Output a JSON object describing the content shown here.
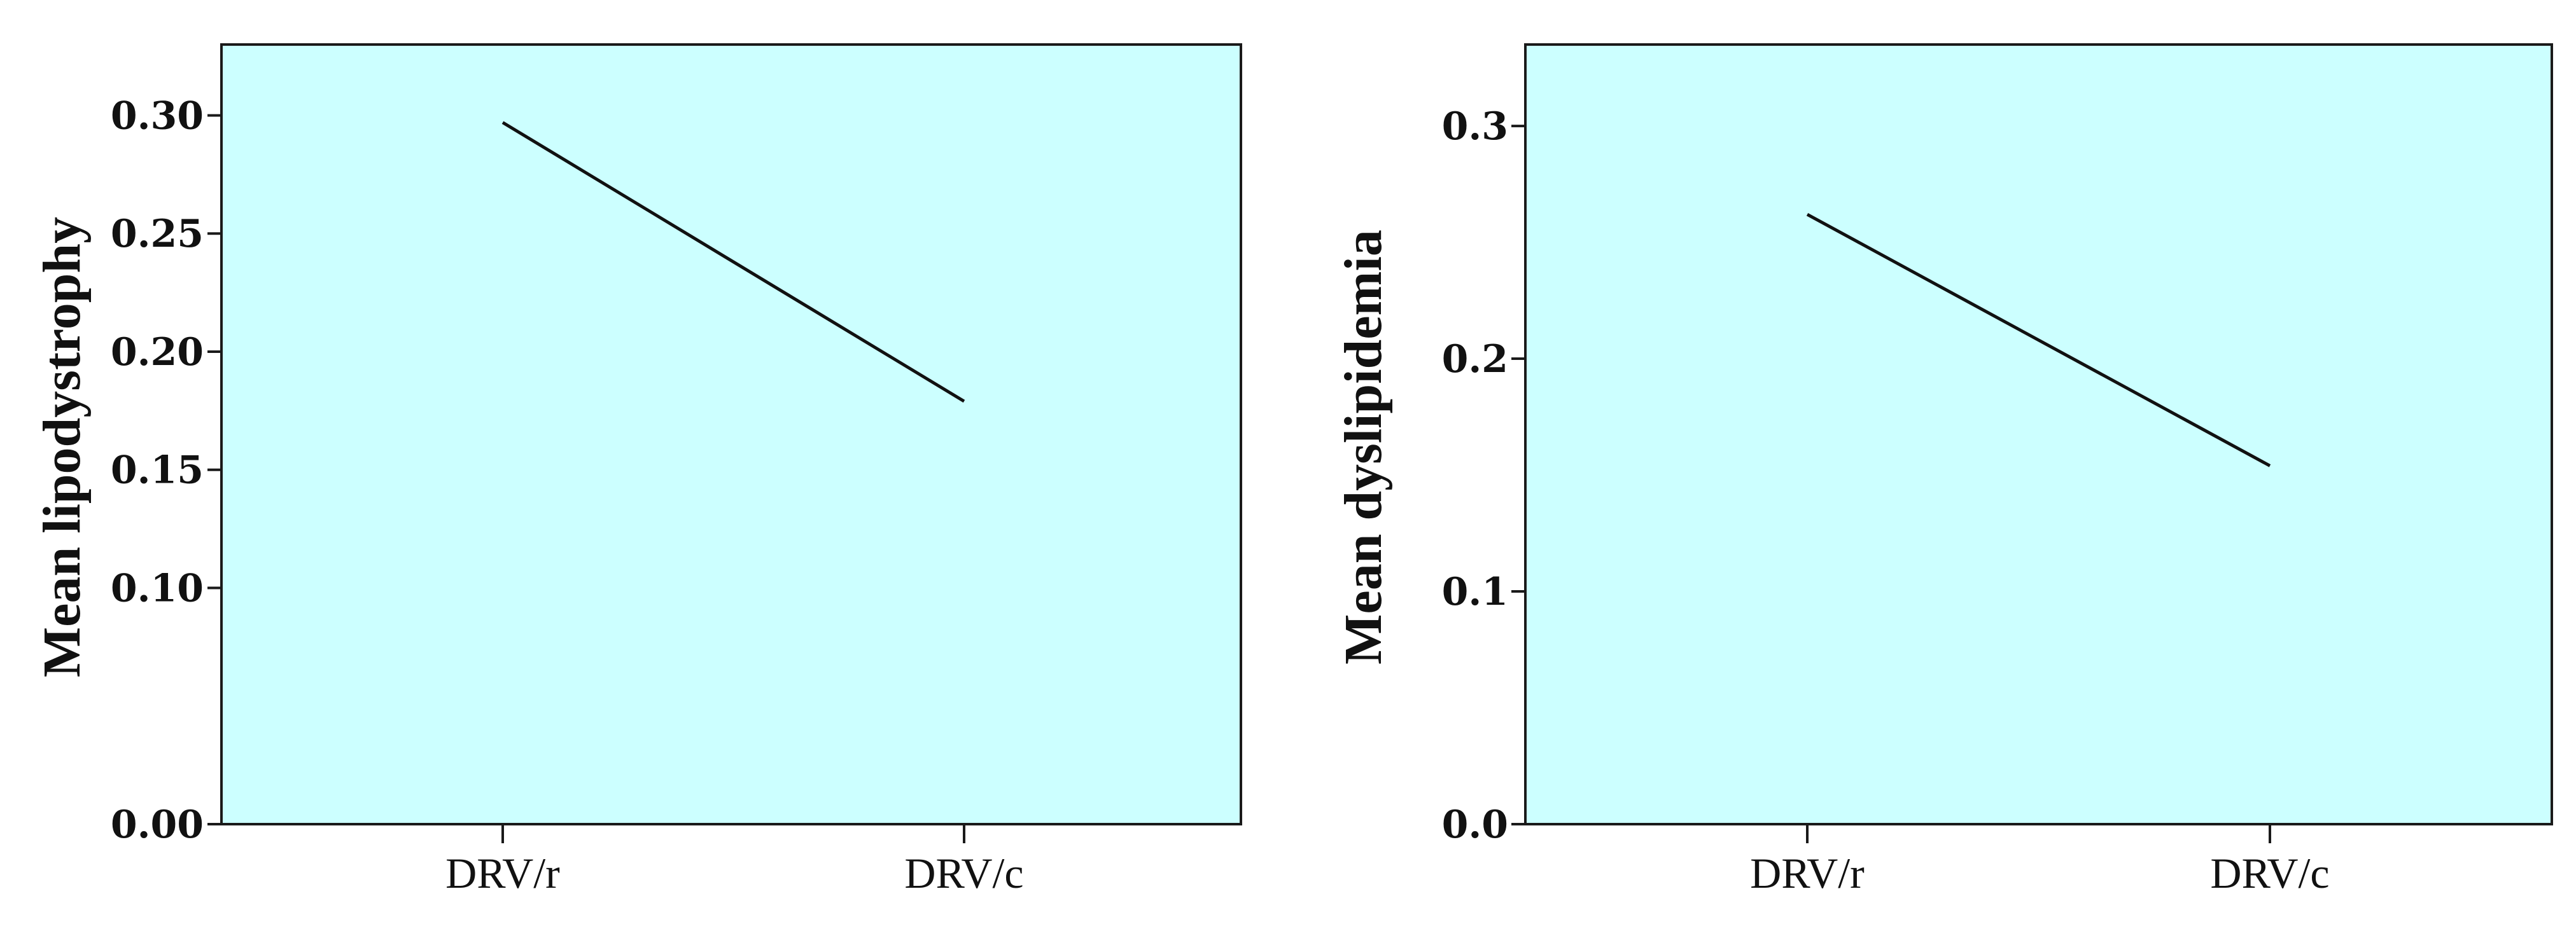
{
  "chart_data": [
    {
      "type": "line",
      "categories": [
        "DRV/r",
        "DRV/c"
      ],
      "series": [
        {
          "values": [
            0.297,
            0.179
          ]
        }
      ],
      "ylabel": "Mean lipodystrophy",
      "xlabel": "",
      "ylim": [
        0,
        0.33
      ],
      "yticks": [
        "0.00",
        "0.10",
        "0.15",
        "0.20",
        "0.25",
        "0.30"
      ],
      "ytick_values": [
        0.0,
        0.1,
        0.15,
        0.2,
        0.25,
        0.3
      ],
      "grid": false,
      "colors": {
        "plot_background": "#ccffff",
        "line": "#111111"
      }
    },
    {
      "type": "line",
      "categories": [
        "DRV/r",
        "DRV/c"
      ],
      "series": [
        {
          "values": [
            0.262,
            0.154
          ]
        }
      ],
      "ylabel": "Mean dyslipidemia",
      "xlabel": "",
      "ylim": [
        0,
        0.335
      ],
      "yticks": [
        "0.0",
        "0.1",
        "0.2",
        "0.3"
      ],
      "ytick_values": [
        0.0,
        0.1,
        0.2,
        0.3
      ],
      "grid": false,
      "colors": {
        "plot_background": "#ccffff",
        "line": "#111111"
      }
    }
  ]
}
